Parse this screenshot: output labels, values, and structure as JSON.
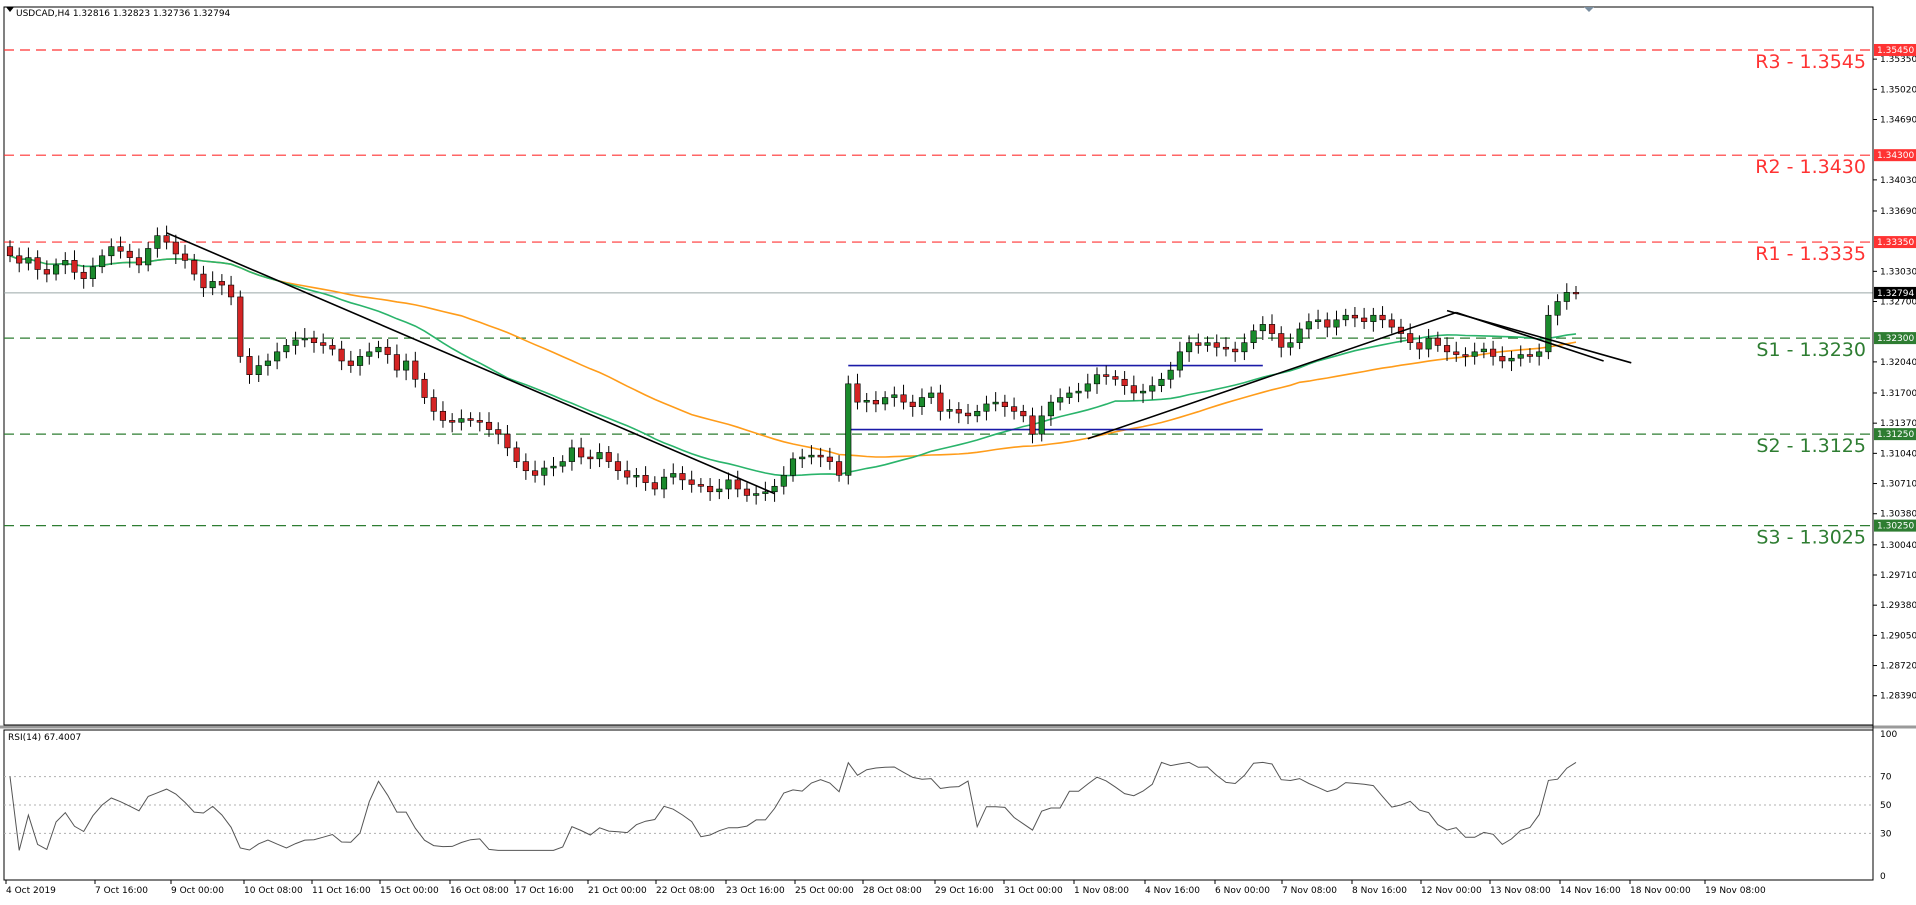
{
  "header": {
    "symbol_info": "USDCAD,H4  1.32816 1.32823 1.32736 1.32794",
    "rsi_info": "RSI(14) 67.4007"
  },
  "colors": {
    "bull_candle": "#1a8a2c",
    "bear_candle": "#d42424",
    "resistance": "#ff3333",
    "support": "#2e7d32",
    "ma_fast": "#2ab46b",
    "ma_slow": "#ff9c1a",
    "range_box": "#1a1aa8",
    "trendline": "#000000",
    "price_line": "#9aa6a6",
    "current_price_tag": "#000000"
  },
  "chart_data": {
    "type": "candlestick",
    "symbol": "USDCAD",
    "timeframe": "H4",
    "ohlc": {
      "open": "1.32816",
      "high": "1.32823",
      "low": "1.32736",
      "close": "1.32794"
    },
    "ylim": [
      1.2807,
      1.3592
    ],
    "y_ticks": [
      "1.35350",
      "1.35020",
      "1.34690",
      "1.34030",
      "1.33690",
      "1.33030",
      "1.32700",
      "1.32040",
      "1.31700",
      "1.31370",
      "1.31040",
      "1.30710",
      "1.30380",
      "1.30040",
      "1.29710",
      "1.29380",
      "1.29050",
      "1.28720",
      "1.28390"
    ],
    "x_ticks": [
      "4 Oct 2019",
      "7 Oct 16:00",
      "9 Oct 00:00",
      "10 Oct 08:00",
      "11 Oct 16:00",
      "15 Oct 00:00",
      "16 Oct 08:00",
      "17 Oct 16:00",
      "21 Oct 00:00",
      "22 Oct 08:00",
      "23 Oct 16:00",
      "25 Oct 00:00",
      "28 Oct 08:00",
      "29 Oct 16:00",
      "31 Oct 00:00",
      "1 Nov 08:00",
      "4 Nov 16:00",
      "6 Nov 00:00",
      "7 Nov 08:00",
      "8 Nov 16:00",
      "12 Nov 00:00",
      "13 Nov 08:00",
      "14 Nov 16:00",
      "18 Nov 00:00",
      "19 Nov 08:00"
    ],
    "levels": [
      {
        "label": "R3 - 1.3545",
        "price": 1.3545,
        "tag": "1.35450",
        "kind": "resistance"
      },
      {
        "label": "R2 - 1.3430",
        "price": 1.343,
        "tag": "1.34300",
        "kind": "resistance"
      },
      {
        "label": "R1 - 1.3335",
        "price": 1.3335,
        "tag": "1.33350",
        "kind": "resistance"
      },
      {
        "label": "S1 - 1.3230",
        "price": 1.323,
        "tag": "1.32300",
        "kind": "support"
      },
      {
        "label": "S2 - 1.3125",
        "price": 1.3125,
        "tag": "1.31250",
        "kind": "support"
      },
      {
        "label": "S3 - 1.3025",
        "price": 1.3025,
        "tag": "1.30250",
        "kind": "support"
      }
    ],
    "current_price": {
      "value": 1.32794,
      "tag": "1.32794"
    },
    "closes": [
      1.332,
      1.3312,
      1.3318,
      1.3305,
      1.33,
      1.331,
      1.3315,
      1.3302,
      1.3295,
      1.3308,
      1.332,
      1.333,
      1.3325,
      1.3318,
      1.331,
      1.3328,
      1.3342,
      1.3335,
      1.3322,
      1.3315,
      1.33,
      1.3285,
      1.3292,
      1.3288,
      1.3275,
      1.321,
      1.319,
      1.32,
      1.3205,
      1.3215,
      1.3222,
      1.3228,
      1.323,
      1.3225,
      1.3222,
      1.3218,
      1.3205,
      1.32,
      1.321,
      1.3215,
      1.322,
      1.3212,
      1.3195,
      1.3205,
      1.3185,
      1.3165,
      1.315,
      1.314,
      1.3138,
      1.3142,
      1.314,
      1.3138,
      1.313,
      1.3125,
      1.311,
      1.3095,
      1.3085,
      1.308,
      1.3088,
      1.309,
      1.3095,
      1.311,
      1.31,
      1.3098,
      1.3105,
      1.3095,
      1.3085,
      1.3078,
      1.308,
      1.3072,
      1.3065,
      1.3078,
      1.3082,
      1.3075,
      1.307,
      1.3068,
      1.3062,
      1.3065,
      1.3075,
      1.3065,
      1.3058,
      1.306,
      1.3062,
      1.3068,
      1.308,
      1.3098,
      1.31,
      1.3102,
      1.31,
      1.3095,
      1.308,
      1.318,
      1.316,
      1.3162,
      1.3158,
      1.3165,
      1.3168,
      1.316,
      1.3155,
      1.3165,
      1.317,
      1.315,
      1.3152,
      1.3148,
      1.3145,
      1.315,
      1.3158,
      1.316,
      1.3155,
      1.315,
      1.3145,
      1.3125,
      1.3145,
      1.316,
      1.3165,
      1.317,
      1.3172,
      1.318,
      1.319,
      1.3188,
      1.3185,
      1.3178,
      1.317,
      1.3172,
      1.3178,
      1.3185,
      1.3195,
      1.3215,
      1.3225,
      1.3222,
      1.3225,
      1.322,
      1.3218,
      1.3215,
      1.3225,
      1.3238,
      1.3245,
      1.3235,
      1.322,
      1.3225,
      1.324,
      1.3248,
      1.325,
      1.3242,
      1.325,
      1.3255,
      1.3252,
      1.3248,
      1.3255,
      1.325,
      1.3242,
      1.3235,
      1.3225,
      1.3218,
      1.323,
      1.3222,
      1.3215,
      1.3212,
      1.321,
      1.3215,
      1.3218,
      1.321,
      1.3205,
      1.3208,
      1.3212,
      1.321,
      1.3215,
      1.3255,
      1.327,
      1.328,
      1.32794
    ]
  }
}
